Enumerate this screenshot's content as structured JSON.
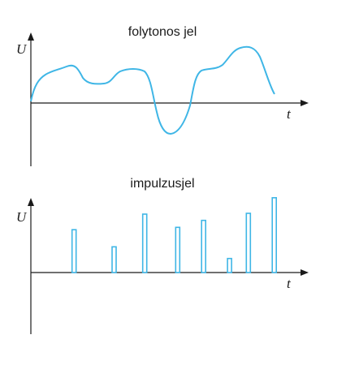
{
  "continuous": {
    "title": "folytonos jel",
    "y_axis_label": "U",
    "x_axis_label": "t",
    "curve_color": "#3fb6e6"
  },
  "impulse": {
    "title": "impulzusjel",
    "y_axis_label": "U",
    "x_axis_label": "t",
    "bar_color": "#3fb6e6",
    "pulses": [
      {
        "t": 0.08,
        "value": 0.55
      },
      {
        "t": 0.25,
        "value": 0.33
      },
      {
        "t": 0.38,
        "value": 0.75
      },
      {
        "t": 0.52,
        "value": 0.58
      },
      {
        "t": 0.63,
        "value": 0.67
      },
      {
        "t": 0.74,
        "value": 0.18
      },
      {
        "t": 0.82,
        "value": 0.76
      },
      {
        "t": 0.93,
        "value": 0.96
      }
    ]
  }
}
